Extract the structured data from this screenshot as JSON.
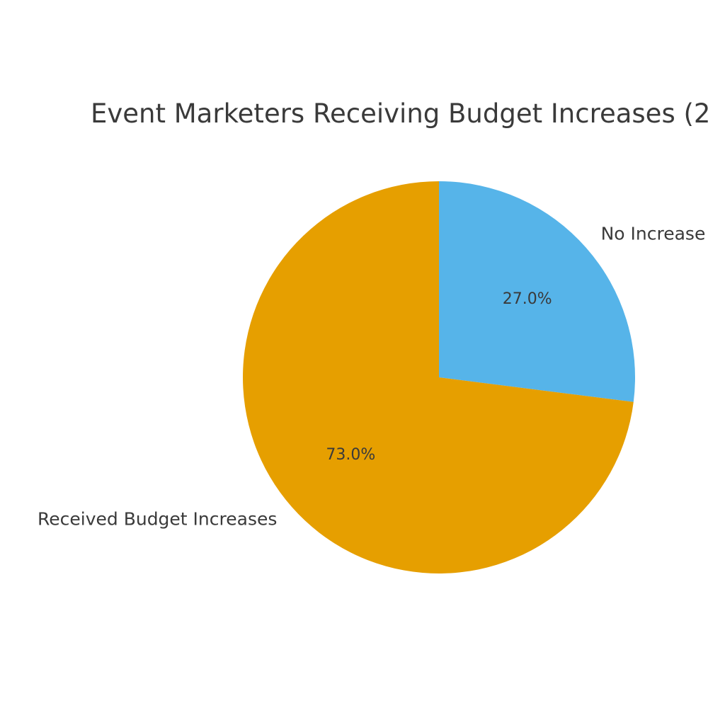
{
  "chart_data": {
    "type": "pie",
    "title": "Event Marketers Receiving Budget Increases (2",
    "slices": [
      {
        "label": "No Increase",
        "value": 27.0,
        "percent_label": "27.0%",
        "color": "#56B4E9"
      },
      {
        "label": "Received Budget Increases",
        "value": 73.0,
        "percent_label": "73.0%",
        "color": "#E69F00"
      }
    ],
    "start_angle": "12 o'clock",
    "direction": "clockwise",
    "legend": "none"
  }
}
